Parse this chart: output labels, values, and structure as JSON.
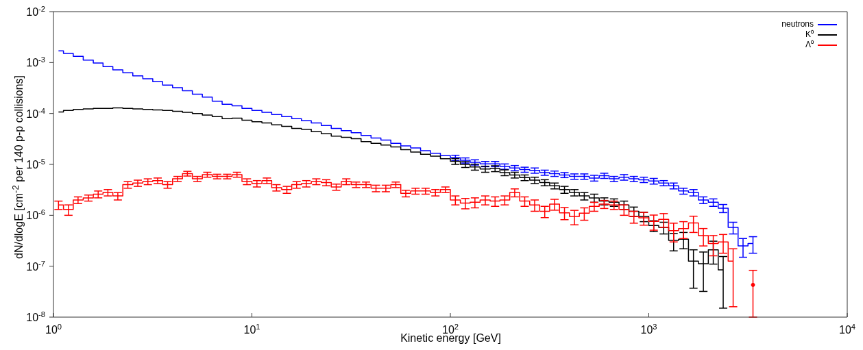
{
  "chart_data": {
    "type": "step",
    "xlabel": "Kinetic energy [GeV]",
    "ylabel": "dN/dlogE [cm$^{-2}$ per 140 p-p collisions]",
    "log": "xy",
    "legend": "top right",
    "grid": false,
    "marker": "none",
    "xlim": [
      1,
      10000
    ],
    "ylim": [
      1e-08,
      0.01
    ],
    "xticks": [
      {
        "value": 1,
        "label": "10$^{0}$"
      },
      {
        "value": 10,
        "label": "10$^{1}$"
      },
      {
        "value": 100,
        "label": "10$^{2}$"
      },
      {
        "value": 1000,
        "label": "10$^{3}$"
      },
      {
        "value": 10000,
        "label": "10$^{4}$"
      }
    ],
    "yticks": [
      {
        "value": 1e-08,
        "label": "10$^{-8}$"
      },
      {
        "value": 1e-07,
        "label": "10$^{-7}$"
      },
      {
        "value": 1e-06,
        "label": "10$^{-6}$"
      },
      {
        "value": 1e-05,
        "label": "10$^{-5}$"
      },
      {
        "value": 0.0001,
        "label": "10$^{-4}$"
      },
      {
        "value": 0.001,
        "label": "10$^{-3}$"
      },
      {
        "value": 0.01,
        "label": "10$^{-2}$"
      }
    ],
    "x": [
      1.06,
      1.19,
      1.33,
      1.5,
      1.68,
      1.88,
      2.11,
      2.37,
      2.66,
      2.99,
      3.35,
      3.76,
      4.22,
      4.73,
      5.31,
      5.96,
      6.68,
      7.5,
      8.41,
      9.44,
      10.6,
      11.9,
      13.3,
      15,
      16.8,
      18.8,
      21.1,
      23.7,
      26.6,
      29.9,
      33.5,
      37.6,
      42.2,
      47.3,
      53.1,
      59.6,
      66.8,
      75,
      84.1,
      94.4,
      106,
      119,
      133,
      150,
      168,
      188,
      211,
      237,
      266,
      299,
      335,
      376,
      422,
      473,
      531,
      596,
      668,
      750,
      841,
      944,
      1059,
      1189,
      1334,
      1496,
      1679,
      1884,
      2113,
      2371,
      2661,
      2985,
      3350
    ],
    "series": [
      {
        "name": "neutrons",
        "color": "#0000ff",
        "values": [
          0.0017,
          0.00151,
          0.00132,
          0.00112,
          0.00098,
          0.00083,
          0.00072,
          0.00063,
          0.00055,
          0.00048,
          0.00042,
          0.00036,
          0.00032,
          0.00028,
          0.00024,
          0.00021,
          0.000174,
          0.000151,
          0.000141,
          0.000126,
          0.000115,
          0.000105,
          9.5e-05,
          8.7e-05,
          7.9e-05,
          7.2e-05,
          6.5e-05,
          5.8e-05,
          5.1e-05,
          4.6e-05,
          4.2e-05,
          3.7e-05,
          3.3e-05,
          3e-05,
          2.6e-05,
          2.3e-05,
          2.1e-05,
          1.86e-05,
          1.66e-05,
          1.48e-05,
          1.35e-05,
          1.2e-05,
          1.1e-05,
          1.02e-05,
          1.02e-05,
          9.1e-06,
          8.5e-06,
          7.9e-06,
          7.6e-06,
          6.9e-06,
          6.6e-06,
          6.2e-06,
          5.8e-06,
          5.8e-06,
          5.4e-06,
          6e-06,
          5.2e-06,
          5.6e-06,
          5.2e-06,
          5e-06,
          4.7e-06,
          4.3e-06,
          3.8e-06,
          3e-06,
          2.8e-06,
          2e-06,
          1.8e-06,
          1.38e-06,
          5.8e-07,
          2.5e-07,
          2.8e-07
        ],
        "errors": [
          null,
          null,
          null,
          null,
          null,
          null,
          null,
          null,
          null,
          null,
          null,
          null,
          null,
          null,
          null,
          null,
          null,
          null,
          null,
          null,
          null,
          null,
          null,
          null,
          null,
          null,
          null,
          null,
          null,
          null,
          null,
          null,
          null,
          null,
          null,
          null,
          null,
          null,
          null,
          null,
          1.6e-06,
          1.4e-06,
          1.3e-06,
          1.2e-06,
          1.2e-06,
          1.1e-06,
          1e-06,
          9e-07,
          9e-07,
          8e-07,
          8e-07,
          7e-07,
          7e-07,
          7e-07,
          7e-07,
          7e-07,
          6e-07,
          7e-07,
          6e-07,
          6e-07,
          6e-07,
          5e-07,
          5e-07,
          4e-07,
          4e-07,
          3e-07,
          3e-07,
          2.5e-07,
          1.5e-07,
          1e-07,
          1e-07
        ]
      },
      {
        "name": "K⁰",
        "color": "#000000",
        "values": [
          0.000107,
          0.000115,
          0.00012,
          0.000123,
          0.000126,
          0.000126,
          0.000129,
          0.000126,
          0.000123,
          0.00012,
          0.000117,
          0.000115,
          0.00011,
          0.000105,
          0.0001,
          9.3e-05,
          8.7e-05,
          7.9e-05,
          8.1e-05,
          7.4e-05,
          6.9e-05,
          6.5e-05,
          6e-05,
          5.6e-05,
          5.1e-05,
          4.9e-05,
          4.4e-05,
          4e-05,
          3.6e-05,
          3.4e-05,
          3.2e-05,
          2.8e-05,
          2.6e-05,
          2.4e-05,
          2.2e-05,
          1.95e-05,
          1.74e-05,
          1.58e-05,
          1.45e-05,
          1.29e-05,
          1.15e-05,
          1e-05,
          8.9e-06,
          8.1e-06,
          8.3e-06,
          6.9e-06,
          6.2e-06,
          5.5e-06,
          4.9e-06,
          4.4e-06,
          3.8e-06,
          3.2e-06,
          2.8e-06,
          2.4e-06,
          2.2e-06,
          1.9e-06,
          1.8e-06,
          1.6e-06,
          1.2e-06,
          9.5e-07,
          6.3e-07,
          5.8e-07,
          3.2e-07,
          3.4e-07,
          1.26e-07,
          1.12e-07,
          2.1e-07,
          8.5e-08,
          null,
          null,
          null
        ],
        "errors": [
          null,
          null,
          null,
          null,
          null,
          null,
          null,
          null,
          null,
          null,
          null,
          null,
          null,
          null,
          null,
          null,
          null,
          null,
          null,
          null,
          null,
          null,
          null,
          null,
          null,
          null,
          null,
          null,
          null,
          null,
          null,
          null,
          null,
          null,
          null,
          null,
          null,
          null,
          null,
          null,
          1.5e-06,
          1.3e-06,
          1.2e-06,
          1.1e-06,
          1.1e-06,
          9e-07,
          8e-07,
          7e-07,
          7e-07,
          6e-07,
          5e-07,
          5e-07,
          4e-07,
          4e-07,
          4e-07,
          3e-07,
          3e-07,
          3e-07,
          2.5e-07,
          2e-07,
          1.5e-07,
          1.5e-07,
          1.2e-07,
          1.2e-07,
          [
            3.7e-08,
            2.1e-07
          ],
          [
            3.2e-08,
            1.9e-07
          ],
          1e-07,
          [
            1.5e-08,
            1.55e-07
          ],
          null,
          null,
          null
        ]
      },
      {
        "name": "Λ⁰",
        "color": "#ff0000",
        "values": [
          1.6e-06,
          1.3e-06,
          2e-06,
          2.2e-06,
          2.6e-06,
          2.8e-06,
          2.4e-06,
          4e-06,
          4.3e-06,
          4.6e-06,
          4.8e-06,
          4e-06,
          5.2e-06,
          6.6e-06,
          5.2e-06,
          6.3e-06,
          5.8e-06,
          5.8e-06,
          6.3e-06,
          4.6e-06,
          4.2e-06,
          4.8e-06,
          3.5e-06,
          3.2e-06,
          4e-06,
          4.2e-06,
          4.6e-06,
          4.4e-06,
          3.6e-06,
          4.6e-06,
          4e-06,
          4e-06,
          3.4e-06,
          3.4e-06,
          4e-06,
          2.7e-06,
          3e-06,
          3e-06,
          2.8e-06,
          3.2e-06,
          2e-06,
          1.74e-06,
          1.8e-06,
          2e-06,
          1.9e-06,
          2e-06,
          2.8e-06,
          1.9e-06,
          1.6e-06,
          1.2e-06,
          1.66e-06,
          1.12e-06,
          9.5e-07,
          1.1e-06,
          1.5e-06,
          1.66e-06,
          1.6e-06,
          1.3e-06,
          9.5e-07,
          8.9e-07,
          7.6e-07,
          8.3e-07,
          5e-07,
          5.5e-07,
          7.1e-07,
          4e-07,
          2.8e-07,
          3e-07,
          1.26e-07,
          null,
          4.3e-08
        ],
        "errors": [
          3e-07,
          3e-07,
          3e-07,
          3e-07,
          4e-07,
          4e-07,
          4e-07,
          6e-07,
          6e-07,
          6e-07,
          6e-07,
          6e-07,
          6e-07,
          7e-07,
          6e-07,
          7e-07,
          6e-07,
          6e-07,
          7e-07,
          6e-07,
          6e-07,
          6e-07,
          5e-07,
          5e-07,
          6e-07,
          6e-07,
          6e-07,
          6e-07,
          5e-07,
          6e-07,
          5e-07,
          5e-07,
          5e-07,
          5e-07,
          5e-07,
          4e-07,
          4e-07,
          4e-07,
          4e-07,
          4e-07,
          4e-07,
          4e-07,
          4e-07,
          4e-07,
          4e-07,
          4e-07,
          5e-07,
          4e-07,
          4e-07,
          3e-07,
          4e-07,
          3e-07,
          3e-07,
          3e-07,
          3e-07,
          3e-07,
          3e-07,
          3e-07,
          2.5e-07,
          2.5e-07,
          2.5e-07,
          2.5e-07,
          2e-07,
          2e-07,
          2.5e-07,
          1.5e-07,
          1.2e-07,
          1.2e-07,
          [
            1.6e-08,
            2.2e-07
          ],
          null,
          [
            1e-08,
            8.3e-08
          ]
        ]
      }
    ]
  }
}
